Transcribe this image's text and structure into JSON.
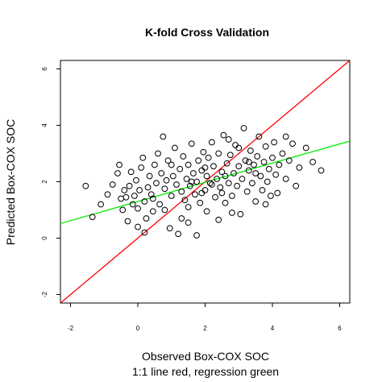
{
  "chart_data": {
    "type": "scatter",
    "title": "K-fold Cross Validation",
    "xlabel": "Observed Box-COX SOC",
    "xlabel_sub": "1:1 line red, regression green",
    "ylabel": "Predicted Box-COX SOC",
    "xlim": [
      -2.3,
      6.3
    ],
    "ylim": [
      -2.3,
      6.3
    ],
    "xticks": [
      "-2",
      "0",
      "2",
      "4",
      "6"
    ],
    "yticks": [
      "-2",
      "0",
      "2",
      "4",
      "6"
    ],
    "grid": false,
    "marker": "open-circle",
    "point_color": "#000000",
    "lines": [
      {
        "label": "1:1 line",
        "color": "#ff0000",
        "intercept": 0.0,
        "slope": 1.0
      },
      {
        "label": "regression",
        "color": "#00ee00",
        "intercept": 1.3,
        "slope": 0.34
      }
    ],
    "points": [
      [
        -1.55,
        1.85
      ],
      [
        -1.35,
        0.75
      ],
      [
        -1.1,
        1.2
      ],
      [
        -0.9,
        1.55
      ],
      [
        -0.75,
        1.9
      ],
      [
        -0.6,
        2.3
      ],
      [
        -0.55,
        2.6
      ],
      [
        -0.5,
        1.4
      ],
      [
        -0.45,
        1.0
      ],
      [
        -0.4,
        1.7
      ],
      [
        -0.35,
        1.45
      ],
      [
        -0.3,
        0.6
      ],
      [
        -0.25,
        1.85
      ],
      [
        -0.2,
        2.35
      ],
      [
        -0.15,
        1.2
      ],
      [
        -0.1,
        1.5
      ],
      [
        -0.05,
        2.05
      ],
      [
        0.0,
        0.4
      ],
      [
        0.0,
        1.05
      ],
      [
        0.05,
        1.7
      ],
      [
        0.1,
        2.5
      ],
      [
        0.15,
        2.85
      ],
      [
        0.2,
        1.3
      ],
      [
        0.25,
        0.7
      ],
      [
        0.3,
        1.8
      ],
      [
        0.35,
        2.2
      ],
      [
        0.4,
        1.55
      ],
      [
        0.45,
        0.95
      ],
      [
        0.5,
        2.6
      ],
      [
        0.55,
        1.95
      ],
      [
        0.6,
        3.0
      ],
      [
        0.65,
        1.2
      ],
      [
        0.7,
        2.3
      ],
      [
        0.75,
        3.6
      ],
      [
        0.8,
        1.75
      ],
      [
        0.85,
        2.05
      ],
      [
        0.9,
        2.75
      ],
      [
        0.95,
        0.35
      ],
      [
        1.0,
        1.5
      ],
      [
        1.05,
        2.2
      ],
      [
        1.1,
        3.2
      ],
      [
        1.15,
        1.9
      ],
      [
        1.2,
        0.15
      ],
      [
        1.25,
        2.45
      ],
      [
        1.3,
        1.65
      ],
      [
        1.35,
        2.9
      ],
      [
        1.4,
        1.35
      ],
      [
        1.45,
        2.1
      ],
      [
        1.5,
        0.55
      ],
      [
        1.5,
        2.6
      ],
      [
        1.55,
        1.85
      ],
      [
        1.6,
        3.35
      ],
      [
        1.65,
        2.3
      ],
      [
        1.7,
        1.55
      ],
      [
        1.75,
        0.1
      ],
      [
        1.75,
        2.0
      ],
      [
        1.8,
        2.75
      ],
      [
        1.85,
        1.25
      ],
      [
        1.9,
        2.4
      ],
      [
        1.95,
        3.05
      ],
      [
        2.0,
        1.7
      ],
      [
        2.05,
        2.2
      ],
      [
        2.05,
        0.95
      ],
      [
        2.1,
        2.85
      ],
      [
        2.15,
        1.95
      ],
      [
        2.2,
        3.4
      ],
      [
        2.25,
        2.55
      ],
      [
        2.3,
        1.45
      ],
      [
        2.35,
        2.1
      ],
      [
        2.4,
        0.65
      ],
      [
        2.4,
        3.0
      ],
      [
        2.45,
        1.8
      ],
      [
        2.5,
        2.35
      ],
      [
        2.55,
        3.65
      ],
      [
        2.6,
        1.25
      ],
      [
        2.65,
        2.65
      ],
      [
        2.7,
        1.95
      ],
      [
        2.75,
        2.95
      ],
      [
        2.8,
        1.5
      ],
      [
        2.85,
        2.3
      ],
      [
        2.9,
        3.3
      ],
      [
        2.95,
        1.85
      ],
      [
        3.0,
        2.55
      ],
      [
        3.05,
        0.85
      ],
      [
        3.1,
        2.1
      ],
      [
        3.15,
        3.9
      ],
      [
        3.2,
        2.75
      ],
      [
        3.25,
        1.65
      ],
      [
        3.3,
        2.4
      ],
      [
        3.35,
        3.1
      ],
      [
        3.4,
        1.95
      ],
      [
        3.45,
        2.6
      ],
      [
        3.5,
        1.3
      ],
      [
        3.55,
        2.9
      ],
      [
        3.6,
        3.6
      ],
      [
        3.65,
        2.2
      ],
      [
        3.7,
        1.7
      ],
      [
        3.75,
        2.7
      ],
      [
        3.8,
        3.25
      ],
      [
        3.85,
        2.0
      ],
      [
        3.9,
        2.45
      ],
      [
        3.95,
        1.5
      ],
      [
        4.0,
        2.85
      ],
      [
        4.05,
        3.4
      ],
      [
        4.1,
        2.25
      ],
      [
        4.15,
        1.6
      ],
      [
        4.2,
        2.6
      ],
      [
        4.3,
        3.0
      ],
      [
        4.4,
        2.1
      ],
      [
        4.5,
        2.75
      ],
      [
        4.6,
        3.35
      ],
      [
        4.7,
        1.85
      ],
      [
        4.8,
        2.5
      ],
      [
        5.0,
        3.2
      ],
      [
        5.2,
        2.7
      ],
      [
        5.45,
        2.4
      ],
      [
        0.45,
        1.4
      ],
      [
        1.0,
        2.6
      ],
      [
        1.5,
        1.1
      ],
      [
        2.0,
        2.5
      ],
      [
        2.5,
        1.6
      ],
      [
        3.0,
        3.2
      ],
      [
        3.5,
        2.3
      ],
      [
        1.3,
        0.7
      ],
      [
        2.8,
        0.9
      ],
      [
        0.2,
        0.2
      ],
      [
        1.6,
        2.0
      ],
      [
        2.2,
        1.9
      ],
      [
        2.6,
        2.2
      ],
      [
        3.3,
        2.7
      ],
      [
        3.8,
        1.2
      ],
      [
        4.4,
        3.6
      ],
      [
        0.8,
        1.0
      ],
      [
        1.9,
        1.6
      ],
      [
        2.7,
        3.5
      ]
    ]
  }
}
